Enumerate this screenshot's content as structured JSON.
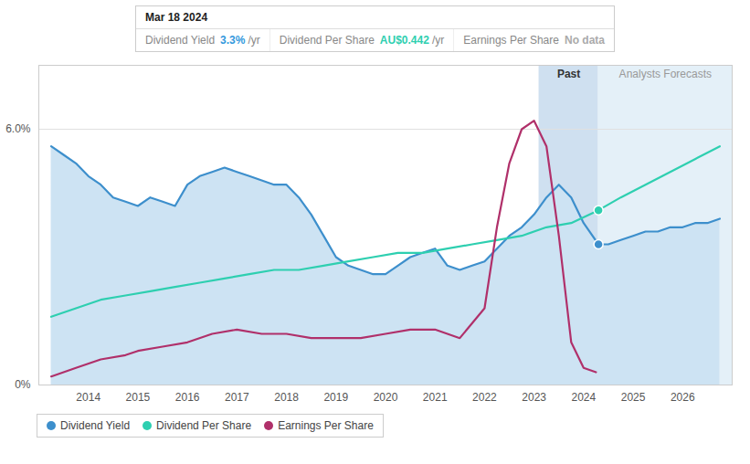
{
  "chart_data": {
    "type": "line",
    "xlim": [
      2013.0,
      2027.0
    ],
    "xticks": [
      2014,
      2015,
      2016,
      2017,
      2018,
      2019,
      2020,
      2021,
      2022,
      2023,
      2024,
      2025,
      2026
    ],
    "ylim": [
      0.0,
      0.075
    ],
    "yticks": [
      {
        "value": 0.0,
        "label": "0%"
      },
      {
        "value": 0.06,
        "label": "6.0%"
      }
    ],
    "grid": true,
    "legend": "bottom",
    "regions": [
      {
        "label": "Past",
        "start": 2023.1,
        "end": 2024.3,
        "color": "#cfe0f0"
      },
      {
        "label": "Analysts Forecasts",
        "start": 2024.3,
        "end": 2027.0,
        "color": "#e4f0f8"
      }
    ],
    "series": [
      {
        "name": "Dividend Yield",
        "type": "area",
        "color": "#3d8fcc",
        "fill_color": "#cde3f3",
        "x": [
          2013.25,
          2013.5,
          2013.75,
          2014.0,
          2014.25,
          2014.5,
          2014.75,
          2015.0,
          2015.25,
          2015.5,
          2015.75,
          2016.0,
          2016.25,
          2016.5,
          2016.75,
          2017.0,
          2017.25,
          2017.5,
          2017.75,
          2018.0,
          2018.25,
          2018.5,
          2018.75,
          2019.0,
          2019.25,
          2019.5,
          2019.75,
          2020.0,
          2020.25,
          2020.5,
          2020.75,
          2021.0,
          2021.25,
          2021.5,
          2021.75,
          2022.0,
          2022.25,
          2022.5,
          2022.75,
          2023.0,
          2023.25,
          2023.5,
          2023.75,
          2024.0,
          2024.3,
          2024.5,
          2024.75,
          2025.0,
          2025.25,
          2025.5,
          2025.75,
          2026.0,
          2026.25,
          2026.5,
          2026.75
        ],
        "values": [
          0.056,
          0.054,
          0.052,
          0.049,
          0.047,
          0.044,
          0.043,
          0.042,
          0.044,
          0.043,
          0.042,
          0.047,
          0.049,
          0.05,
          0.051,
          0.05,
          0.049,
          0.048,
          0.047,
          0.047,
          0.044,
          0.04,
          0.035,
          0.03,
          0.028,
          0.027,
          0.026,
          0.026,
          0.028,
          0.03,
          0.031,
          0.032,
          0.028,
          0.027,
          0.028,
          0.029,
          0.032,
          0.035,
          0.037,
          0.04,
          0.044,
          0.047,
          0.044,
          0.038,
          0.033,
          0.033,
          0.034,
          0.035,
          0.036,
          0.036,
          0.037,
          0.037,
          0.038,
          0.038,
          0.039
        ]
      },
      {
        "name": "Dividend Per Share",
        "type": "line",
        "color": "#2ecfb0",
        "x": [
          2013.25,
          2013.75,
          2014.25,
          2014.75,
          2015.25,
          2015.75,
          2016.25,
          2016.75,
          2017.25,
          2017.75,
          2018.25,
          2018.75,
          2019.25,
          2019.75,
          2020.25,
          2020.75,
          2021.25,
          2021.75,
          2022.25,
          2022.75,
          2023.25,
          2023.75,
          2024.3,
          2024.75,
          2025.25,
          2025.75,
          2026.25,
          2026.75
        ],
        "values": [
          0.016,
          0.018,
          0.02,
          0.021,
          0.022,
          0.023,
          0.024,
          0.025,
          0.026,
          0.027,
          0.027,
          0.028,
          0.029,
          0.03,
          0.031,
          0.031,
          0.032,
          0.033,
          0.034,
          0.035,
          0.037,
          0.038,
          0.041,
          0.044,
          0.047,
          0.05,
          0.053,
          0.056
        ]
      },
      {
        "name": "Earnings Per Share",
        "type": "line",
        "color": "#b0306a",
        "x": [
          2013.25,
          2013.75,
          2014.25,
          2014.75,
          2015.0,
          2015.5,
          2016.0,
          2016.5,
          2017.0,
          2017.5,
          2018.0,
          2018.5,
          2019.0,
          2019.5,
          2020.0,
          2020.5,
          2021.0,
          2021.5,
          2022.0,
          2022.25,
          2022.5,
          2022.75,
          2023.0,
          2023.25,
          2023.5,
          2023.75,
          2024.0,
          2024.25
        ],
        "values": [
          0.002,
          0.004,
          0.006,
          0.007,
          0.008,
          0.009,
          0.01,
          0.012,
          0.013,
          0.012,
          0.012,
          0.011,
          0.011,
          0.011,
          0.012,
          0.013,
          0.013,
          0.011,
          0.018,
          0.037,
          0.052,
          0.06,
          0.062,
          0.056,
          0.035,
          0.01,
          0.004,
          0.003
        ]
      }
    ],
    "markers": [
      {
        "series": "Dividend Yield",
        "x": 2024.3,
        "y": 0.033
      },
      {
        "series": "Dividend Per Share",
        "x": 2024.3,
        "y": 0.041
      }
    ],
    "tooltip": {
      "date": "Mar 18 2024",
      "rows": [
        {
          "label": "Dividend Yield",
          "value": "3.3%",
          "value_color": "#3399dd",
          "suffix": "/yr"
        },
        {
          "label": "Dividend Per Share",
          "value": "AU$0.442",
          "value_color": "#2ecfb0",
          "suffix": "/yr"
        },
        {
          "label": "Earnings Per Share",
          "value": "No data",
          "value_color": "#aaaaaa"
        }
      ]
    }
  }
}
